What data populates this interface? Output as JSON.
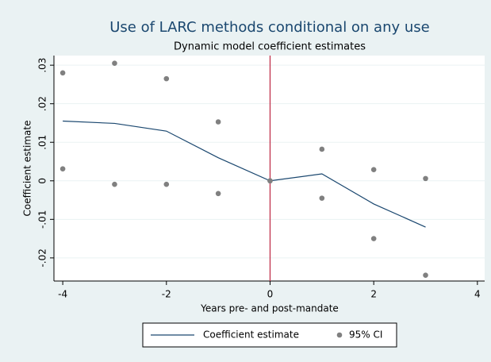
{
  "chart_data": {
    "type": "line",
    "title": "Use of LARC methods conditional on any use",
    "subtitle": "Dynamic model coefficient estimates",
    "x_label": "Years pre- and post-mandate",
    "y_label": "Coefficient estimate",
    "x": [
      -4,
      -3,
      -2,
      -1,
      0,
      1,
      2,
      3
    ],
    "series": [
      {
        "name": "Coefficient estimate",
        "color": "#1a476f",
        "values": [
          0.0155,
          0.0149,
          0.0129,
          0.006,
          0,
          0.0018,
          -0.006,
          -0.012
        ]
      },
      {
        "name": "95% CI",
        "color": "#808080",
        "upper": [
          0.028,
          0.0305,
          0.0265,
          0.0153,
          0,
          0.0082,
          0.0029,
          0.0006
        ],
        "lower": [
          0.0031,
          -0.0009,
          -0.0009,
          -0.0033,
          0,
          -0.0045,
          -0.015,
          -0.0245
        ]
      }
    ],
    "xlim": [
      -4.17,
      4.14
    ],
    "xticks": [
      -4,
      -2,
      0,
      2,
      4
    ],
    "ylim": [
      -0.026,
      0.0325
    ],
    "yticks": [
      {
        "value": -0.02,
        "label": "-.02"
      },
      {
        "value": -0.01,
        "label": "-.01"
      },
      0,
      {
        "value": 0.01,
        "label": ".01"
      },
      {
        "value": 0.02,
        "label": ".02"
      },
      {
        "value": 0.03,
        "label": ".03"
      }
    ],
    "xline": 0,
    "xline_color": "#c0304a",
    "grid": true
  }
}
